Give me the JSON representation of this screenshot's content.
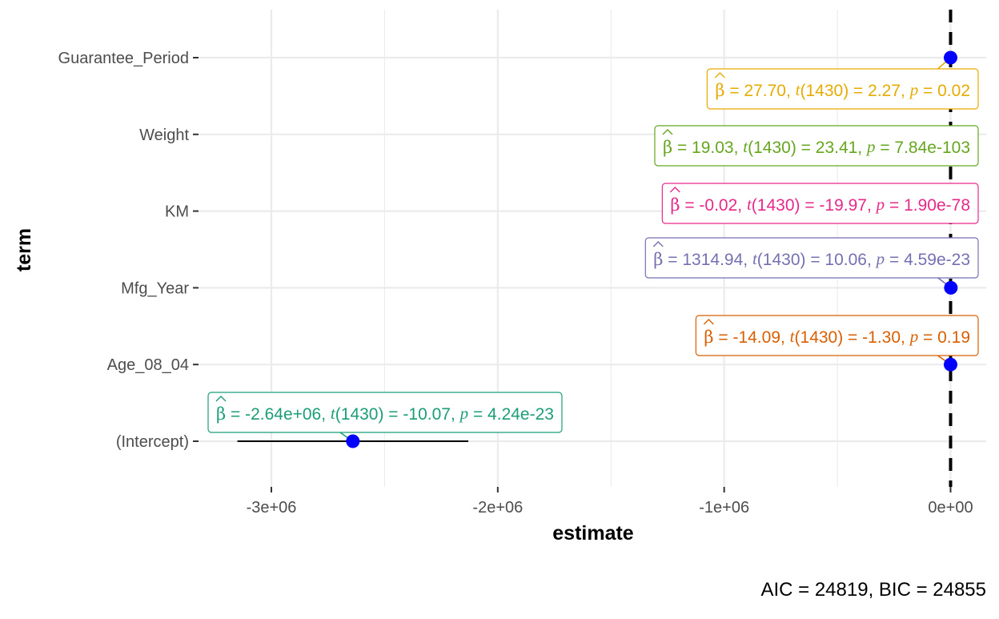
{
  "chart_data": {
    "type": "scatter",
    "subtype": "coefficient-dot-whisker",
    "xlabel": "estimate",
    "ylabel": "term",
    "x_ticks": [
      -3000000,
      -2000000,
      -1000000,
      0
    ],
    "x_tick_labels": [
      "-3e+06",
      "-2e+06",
      "-1e+06",
      "0e+00"
    ],
    "xlim": [
      -3300000,
      110000
    ],
    "reference_line_x": 0,
    "grid": true,
    "terms": [
      "(Intercept)",
      "Age_08_04",
      "Mfg_Year",
      "KM",
      "Weight",
      "Guarantee_Period"
    ],
    "points": [
      {
        "term": "(Intercept)",
        "estimate": -2640000,
        "conf_low": -3150000,
        "conf_high": -2130000
      },
      {
        "term": "Age_08_04",
        "estimate": -14.09,
        "conf_low": -14.09,
        "conf_high": -14.09
      },
      {
        "term": "Mfg_Year",
        "estimate": 1314.94,
        "conf_low": 1314.94,
        "conf_high": 1314.94
      },
      {
        "term": "KM",
        "estimate": -0.02,
        "conf_low": -0.02,
        "conf_high": -0.02
      },
      {
        "term": "Weight",
        "estimate": 19.03,
        "conf_low": 19.03,
        "conf_high": 19.03
      },
      {
        "term": "Guarantee_Period",
        "estimate": 27.7,
        "conf_low": 27.7,
        "conf_high": 27.7
      }
    ],
    "point_color": "#0000ff",
    "annotations": [
      {
        "term": "Guarantee_Period",
        "beta": "27.70",
        "df": "1430",
        "t": "2.27",
        "p": "0.02",
        "color": "#e6ab02"
      },
      {
        "term": "Weight",
        "beta": "19.03",
        "df": "1430",
        "t": "23.41",
        "p": "7.84e-103",
        "color": "#66a61e"
      },
      {
        "term": "KM",
        "beta": "-0.02",
        "df": "1430",
        "t": "-19.97",
        "p": "1.90e-78",
        "color": "#e7298a"
      },
      {
        "term": "Mfg_Year",
        "beta": "1314.94",
        "df": "1430",
        "t": "10.06",
        "p": "4.59e-23",
        "color": "#7570b3"
      },
      {
        "term": "Age_08_04",
        "beta": "-14.09",
        "df": "1430",
        "t": "-1.30",
        "p": "0.19",
        "color": "#d95f02"
      },
      {
        "term": "(Intercept)",
        "beta": "-2.64e+06",
        "df": "1430",
        "t": "-10.07",
        "p": "4.24e-23",
        "color": "#1b9e77"
      }
    ],
    "caption": "AIC = 24819, BIC = 24855"
  }
}
